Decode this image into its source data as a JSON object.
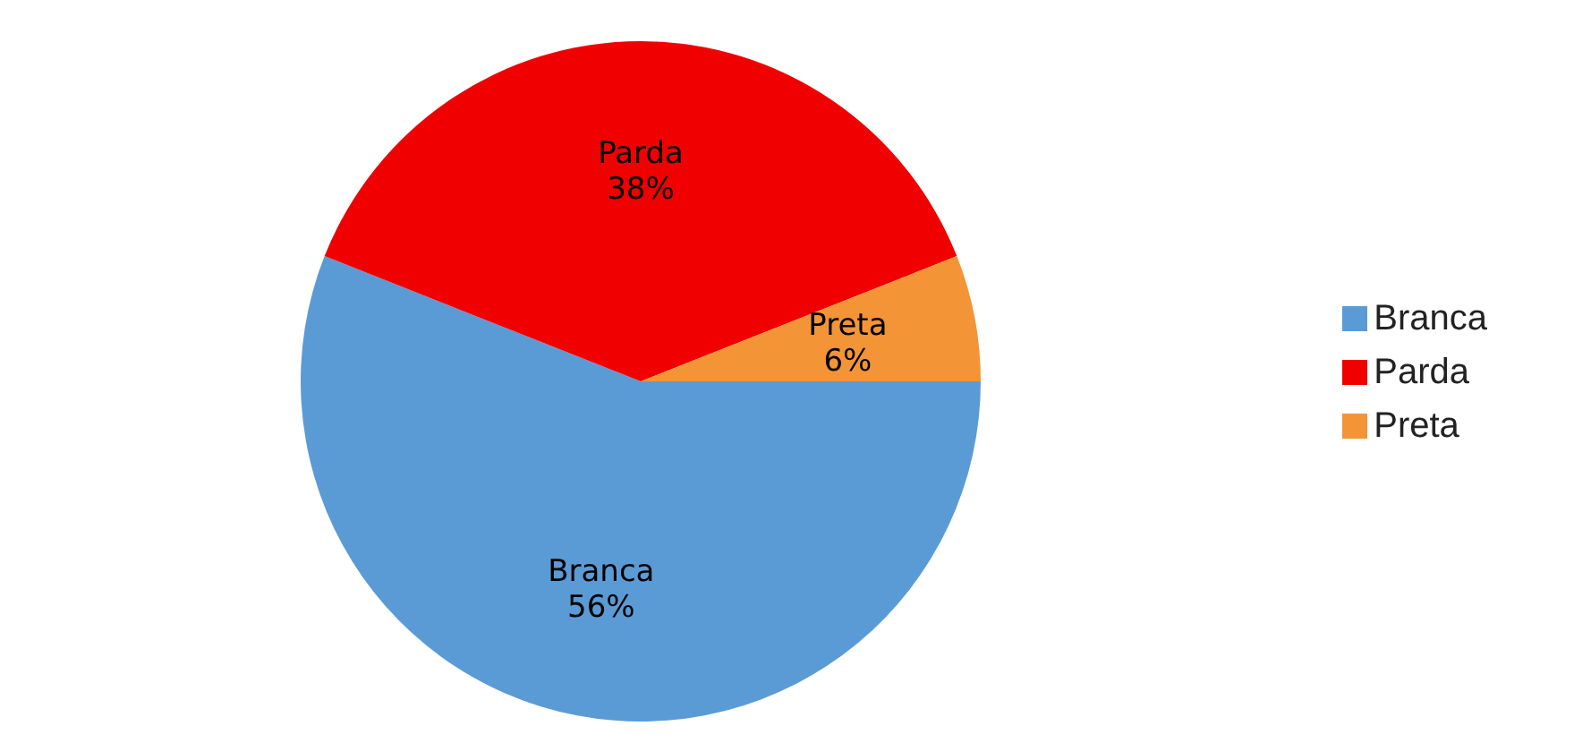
{
  "chart_data": {
    "type": "pie",
    "categories": [
      "Branca",
      "Parda",
      "Preta"
    ],
    "values": [
      56,
      38,
      6
    ],
    "colors": [
      "#5b9bd5",
      "#f00000",
      "#f39437"
    ],
    "value_labels": [
      "56%",
      "38%",
      "6%"
    ],
    "legend": "right"
  }
}
